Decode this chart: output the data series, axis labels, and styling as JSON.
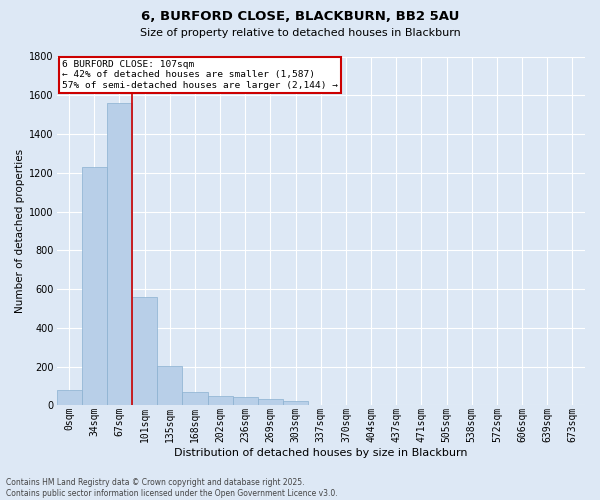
{
  "title_line1": "6, BURFORD CLOSE, BLACKBURN, BB2 5AU",
  "title_line2": "Size of property relative to detached houses in Blackburn",
  "xlabel": "Distribution of detached houses by size in Blackburn",
  "ylabel": "Number of detached properties",
  "categories": [
    "0sqm",
    "34sqm",
    "67sqm",
    "101sqm",
    "135sqm",
    "168sqm",
    "202sqm",
    "236sqm",
    "269sqm",
    "303sqm",
    "337sqm",
    "370sqm",
    "404sqm",
    "437sqm",
    "471sqm",
    "505sqm",
    "538sqm",
    "572sqm",
    "606sqm",
    "639sqm",
    "673sqm"
  ],
  "values": [
    80,
    1230,
    1560,
    560,
    205,
    70,
    50,
    45,
    30,
    20,
    0,
    0,
    0,
    0,
    0,
    0,
    0,
    0,
    0,
    0,
    0
  ],
  "bar_color": "#b8cfe8",
  "bar_edge_color": "#8ab0d0",
  "vline_x": 3,
  "vline_color": "#cc0000",
  "ylim": [
    0,
    1800
  ],
  "yticks": [
    0,
    200,
    400,
    600,
    800,
    1000,
    1200,
    1400,
    1600,
    1800
  ],
  "background_color": "#dde8f5",
  "grid_color": "#ffffff",
  "annotation_title": "6 BURFORD CLOSE: 107sqm",
  "annotation_line2": "← 42% of detached houses are smaller (1,587)",
  "annotation_line3": "57% of semi-detached houses are larger (2,144) →",
  "annotation_box_color": "#ffffff",
  "annotation_box_edge": "#cc0000",
  "footer_line1": "Contains HM Land Registry data © Crown copyright and database right 2025.",
  "footer_line2": "Contains public sector information licensed under the Open Government Licence v3.0.",
  "title_fontsize": 9.5,
  "subtitle_fontsize": 8,
  "ylabel_fontsize": 7.5,
  "xlabel_fontsize": 8,
  "tick_fontsize": 7,
  "ann_fontsize": 6.8,
  "footer_fontsize": 5.5
}
